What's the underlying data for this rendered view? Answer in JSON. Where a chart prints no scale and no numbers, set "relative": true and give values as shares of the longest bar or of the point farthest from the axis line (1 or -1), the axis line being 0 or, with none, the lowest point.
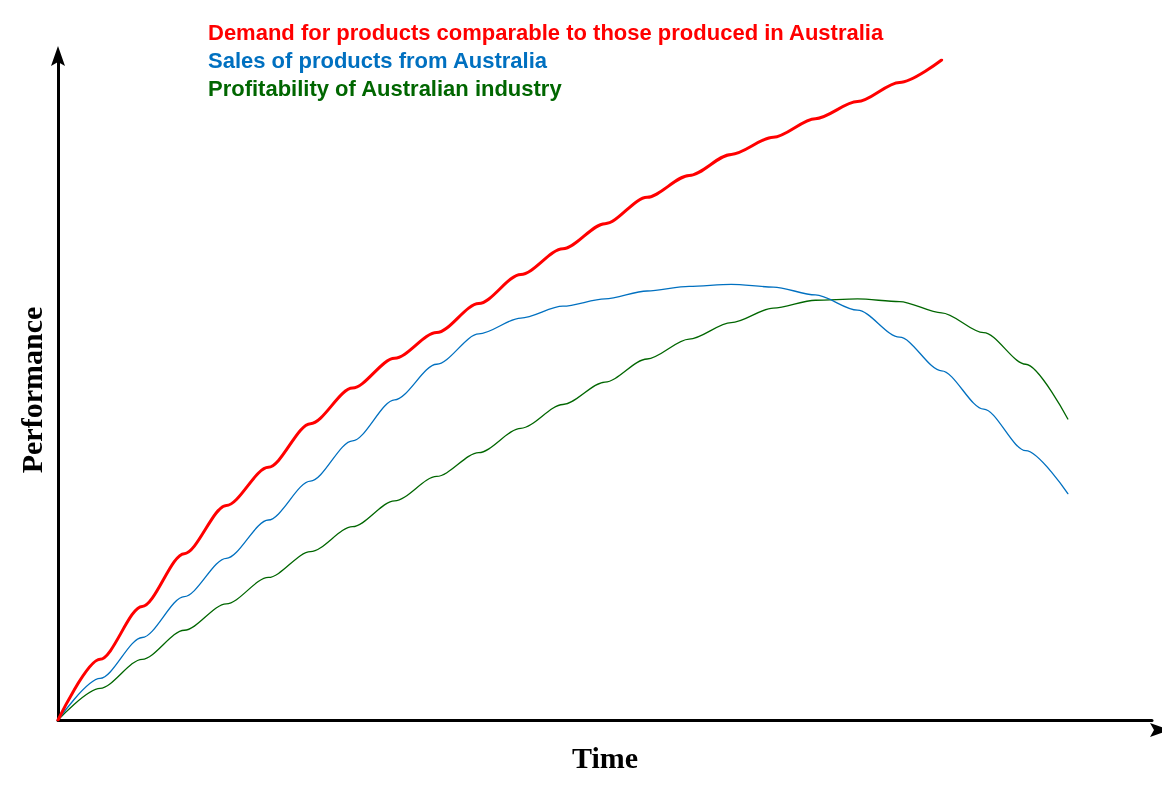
{
  "chart_data": {
    "type": "line",
    "relative": true,
    "xlabel": "Time",
    "ylabel": "Performance",
    "legend": "top",
    "marker": "none",
    "line_style": "solid",
    "grid": false,
    "categories": [
      null,
      null,
      null,
      null,
      null,
      null,
      null,
      null,
      null,
      null,
      null,
      null,
      null,
      null,
      null,
      null,
      null,
      null,
      null,
      null,
      null,
      null,
      null,
      null,
      null,
      null,
      null
    ],
    "series": [
      {
        "name": "Demand for products comparable to those produced in Australia",
        "color": "#ff0000",
        "values": [
          0,
          0.092,
          0.172,
          0.252,
          0.325,
          0.383,
          0.449,
          0.503,
          0.548,
          0.587,
          0.631,
          0.675,
          0.714,
          0.752,
          0.792,
          0.825,
          0.857,
          0.883,
          0.911,
          0.937,
          0.966,
          1,
          null,
          null,
          null,
          null,
          null
        ]
      },
      {
        "name": "Sales of products from Australia",
        "color": "#0070c0",
        "values": [
          0,
          0.063,
          0.125,
          0.187,
          0.245,
          0.303,
          0.362,
          0.423,
          0.485,
          0.539,
          0.585,
          0.609,
          0.627,
          0.638,
          0.65,
          0.657,
          0.66,
          0.656,
          0.644,
          0.621,
          0.58,
          0.529,
          0.471,
          0.408,
          0.343,
          null,
          null
        ]
      },
      {
        "name": "Profitability of Australian industry",
        "color": "#006600",
        "values": [
          0,
          0.048,
          0.092,
          0.136,
          0.176,
          0.216,
          0.255,
          0.293,
          0.332,
          0.369,
          0.405,
          0.442,
          0.478,
          0.512,
          0.547,
          0.577,
          0.602,
          0.624,
          0.636,
          0.638,
          0.634,
          0.617,
          0.587,
          0.539,
          0.456,
          null,
          null
        ]
      }
    ]
  }
}
